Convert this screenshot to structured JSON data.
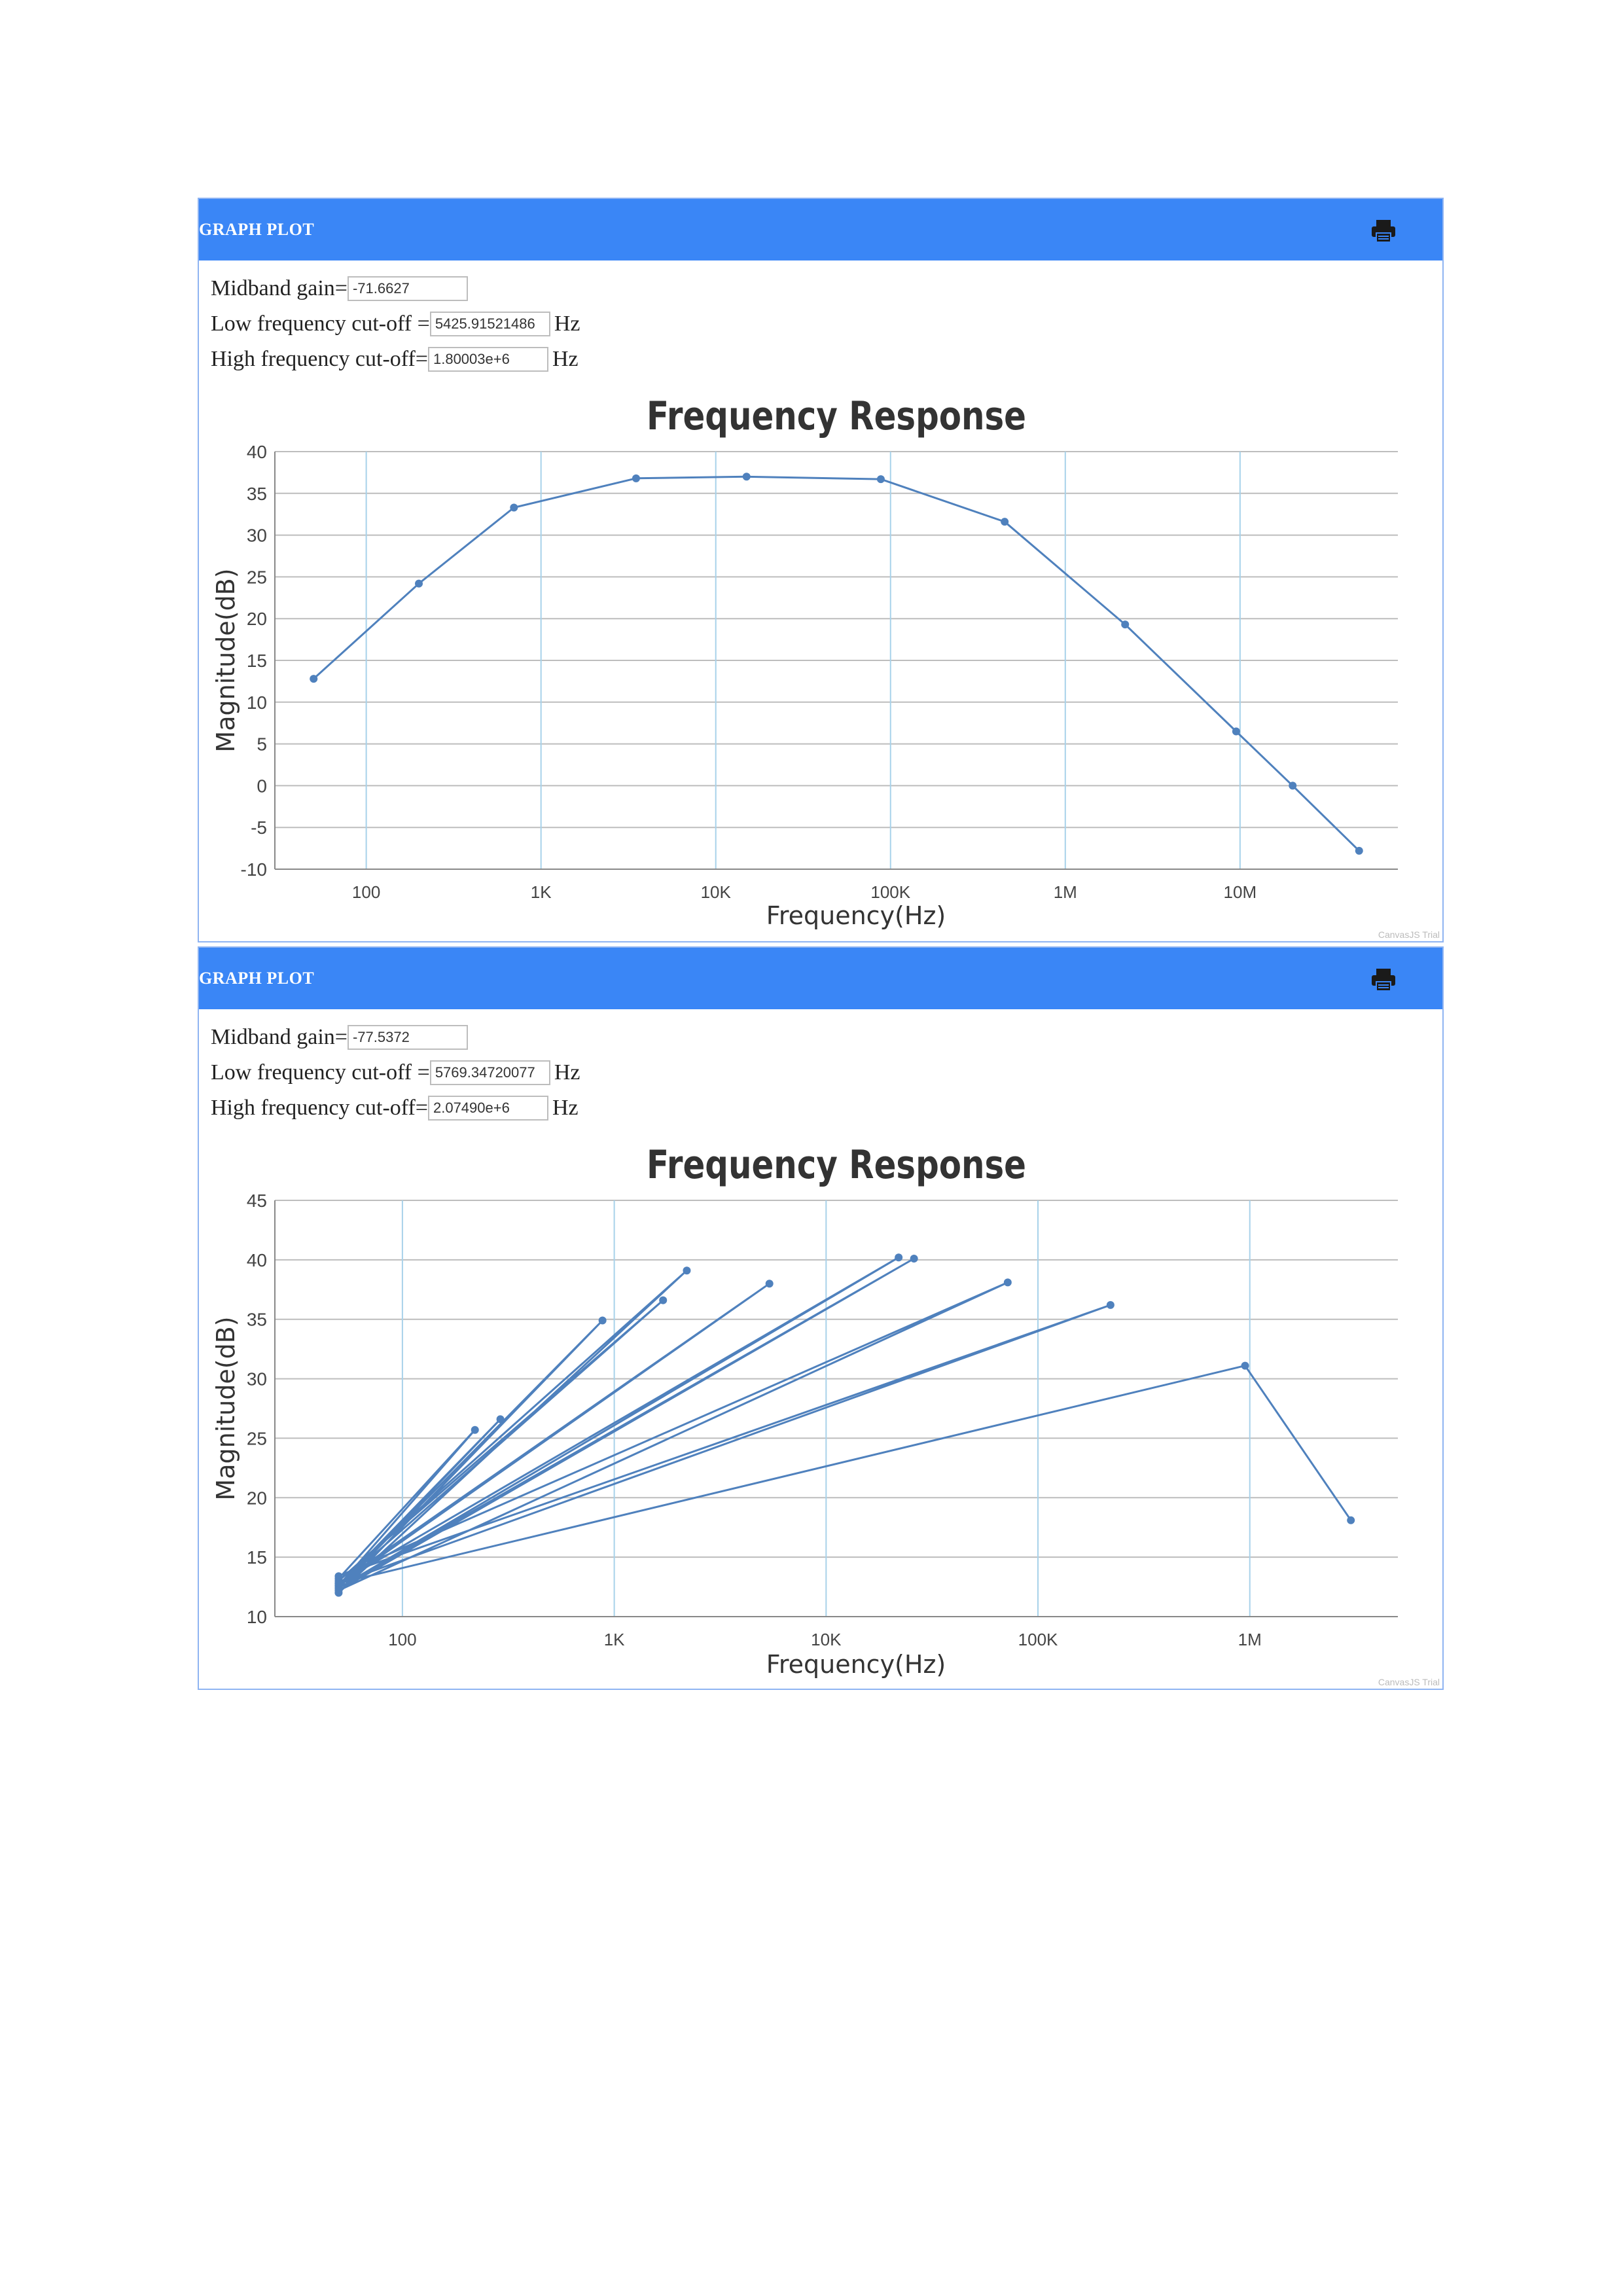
{
  "panels": [
    {
      "header_title": "GRAPH PLOT",
      "print_icon": "printer-icon",
      "fields": {
        "midband_label": "Midband gain=",
        "midband_value": "-71.6627",
        "low_label": "Low frequency cut-off =",
        "low_value": "5425.91521486",
        "low_unit": "Hz",
        "high_label": "High frequency cut-off=",
        "high_value": "1.80003e+6",
        "high_unit": "Hz"
      },
      "watermark": "CanvasJS Trial"
    },
    {
      "header_title": "GRAPH PLOT",
      "print_icon": "printer-icon",
      "fields": {
        "midband_label": "Midband gain=",
        "midband_value": "-77.5372",
        "low_label": "Low frequency cut-off =",
        "low_value": "5769.34720077",
        "low_unit": "Hz",
        "high_label": "High frequency cut-off=",
        "high_value": "2.07490e+6",
        "high_unit": "Hz"
      },
      "watermark": "CanvasJS Trial"
    }
  ],
  "colors": {
    "header": "#3a86f6",
    "series": "#4f81bd",
    "grid_h": "#bdbdbd",
    "grid_v": "#a8d2ea"
  },
  "chart_data": [
    {
      "type": "line",
      "title": "Frequency Response",
      "xlabel": "Frequency(Hz)",
      "ylabel": "Magnitude(dB)",
      "x_scale": "log",
      "xlim": [
        30,
        80000000
      ],
      "ylim": [
        -10,
        40
      ],
      "yticks": [
        -10,
        -5,
        0,
        5,
        10,
        15,
        20,
        25,
        30,
        35,
        40
      ],
      "xticks": [
        100,
        1000,
        10000,
        100000,
        1000000,
        10000000
      ],
      "xtick_labels": [
        "100",
        "1K",
        "10K",
        "100K",
        "1M",
        "10M"
      ],
      "grid": true,
      "series": [
        {
          "x": [
            50,
            200,
            700,
            3500,
            15000,
            88000,
            450000,
            2200000,
            9500000,
            20000000,
            48000000
          ],
          "y": [
            12.8,
            24.2,
            33.3,
            36.8,
            37.0,
            36.7,
            31.6,
            19.3,
            6.5,
            0.0,
            -7.8
          ]
        }
      ]
    },
    {
      "type": "line",
      "title": "Frequency Response",
      "xlabel": "Frequency(Hz)",
      "ylabel": "Magnitude(dB)",
      "x_scale": "log",
      "xlim": [
        25,
        5000000
      ],
      "ylim": [
        10,
        45
      ],
      "yticks": [
        10,
        15,
        20,
        25,
        30,
        35,
        40,
        45
      ],
      "xticks": [
        100,
        1000,
        10000,
        100000,
        1000000
      ],
      "xtick_labels": [
        "100",
        "1K",
        "10K",
        "100K",
        "1M"
      ],
      "grid": true,
      "series": [
        {
          "x": [
            50,
            220,
            50,
            290,
            50,
            880,
            50,
            2200,
            50,
            1700,
            50,
            5400,
            50,
            22000,
            50,
            26000,
            50,
            72000,
            50,
            220000,
            50,
            950000,
            3000000
          ],
          "y": [
            13.2,
            25.7,
            12.6,
            26.6,
            12.4,
            34.9,
            12.0,
            39.1,
            13.0,
            36.6,
            12.6,
            38.0,
            12.8,
            40.2,
            12.4,
            40.1,
            12.2,
            38.1,
            13.4,
            36.2,
            12.8,
            31.1,
            18.1
          ]
        }
      ]
    }
  ]
}
